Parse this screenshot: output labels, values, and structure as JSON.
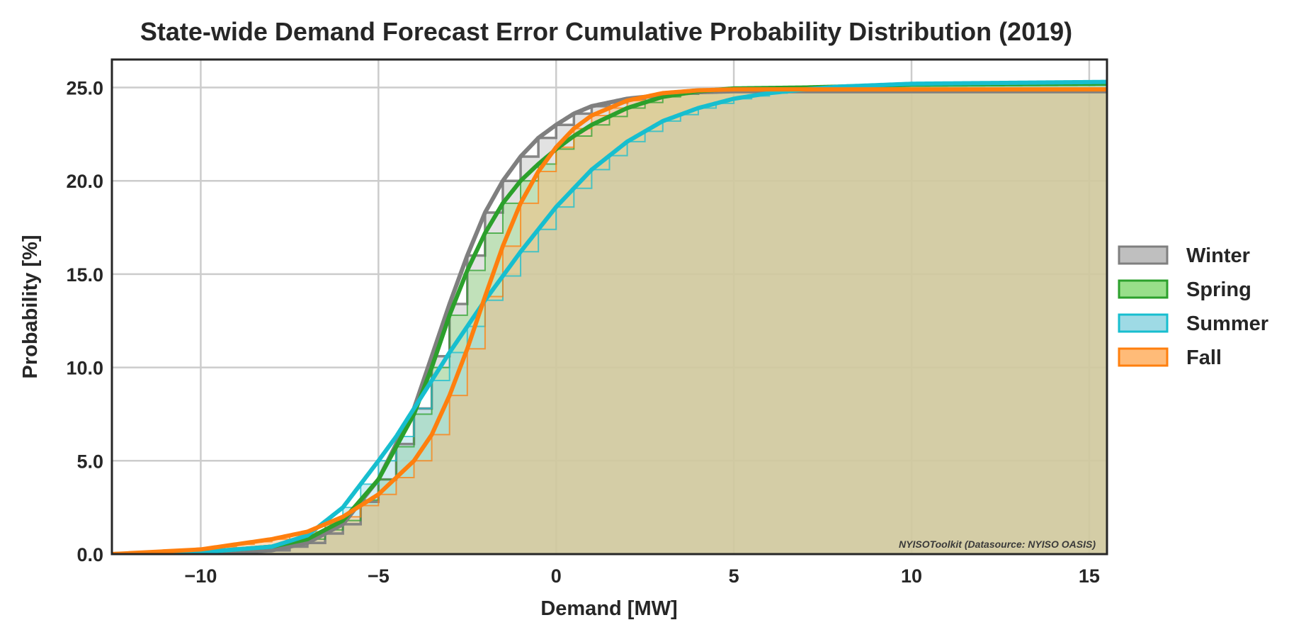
{
  "chart_data": {
    "type": "area",
    "title": "State-wide Demand Forecast Error Cumulative Probability Distribution (2019)",
    "xlabel": "Demand [MW]",
    "ylabel": "Probability [%]",
    "xlim": [
      -12.5,
      15.5
    ],
    "ylim": [
      0,
      26.5
    ],
    "xticks": [
      -10,
      -5,
      0,
      5,
      10,
      15
    ],
    "xtick_labels": [
      "−10",
      "−5",
      "0",
      "5",
      "10",
      "15"
    ],
    "yticks": [
      0,
      5,
      10,
      15,
      20,
      25
    ],
    "ytick_labels": [
      "0.0",
      "5.0",
      "10.0",
      "15.0",
      "20.0",
      "25.0"
    ],
    "grid": true,
    "legend_position": "right",
    "watermark": "NYISOToolkit (Datasource: NYISO OASIS)",
    "series": [
      {
        "name": "Winter",
        "color": "#7f7f7f",
        "fill": "#bfbfbf",
        "x": [
          -12.5,
          -10,
          -8,
          -7,
          -6,
          -5,
          -4,
          -3.5,
          -3,
          -2.5,
          -2,
          -1.5,
          -1,
          -0.5,
          0,
          0.5,
          1,
          2,
          3,
          4,
          5,
          7,
          10,
          15.5
        ],
        "y": [
          0,
          0.05,
          0.2,
          0.6,
          1.6,
          4.0,
          7.8,
          10.6,
          13.4,
          16.0,
          18.3,
          20.0,
          21.3,
          22.3,
          23.0,
          23.6,
          24.0,
          24.4,
          24.6,
          24.75,
          24.8,
          24.8,
          24.8,
          24.8
        ]
      },
      {
        "name": "Spring",
        "color": "#2ca02c",
        "fill": "#98df8a",
        "x": [
          -12.5,
          -10,
          -8,
          -7,
          -6,
          -5,
          -4,
          -3.5,
          -3,
          -2.5,
          -2,
          -1.5,
          -1,
          -0.5,
          0,
          0.5,
          1,
          2,
          3,
          4,
          5,
          7,
          8,
          10,
          15.5
        ],
        "y": [
          0,
          0.1,
          0.4,
          0.8,
          1.8,
          4.0,
          7.5,
          10.0,
          12.8,
          15.2,
          17.2,
          18.8,
          20.0,
          20.9,
          21.7,
          22.4,
          23.0,
          23.9,
          24.5,
          24.8,
          24.95,
          25.0,
          25.05,
          25.15,
          25.2
        ]
      },
      {
        "name": "Summer",
        "color": "#17becf",
        "fill": "#9edae5",
        "x": [
          -12.5,
          -10,
          -8,
          -7,
          -6,
          -5,
          -4.5,
          -4,
          -3,
          -2,
          -1,
          0,
          1,
          2,
          3,
          4,
          5,
          6,
          7,
          8,
          10,
          15.5
        ],
        "y": [
          0,
          0.1,
          0.4,
          1.0,
          2.5,
          5.0,
          6.3,
          7.8,
          10.8,
          13.6,
          16.2,
          18.6,
          20.6,
          22.1,
          23.2,
          23.9,
          24.4,
          24.7,
          24.9,
          25.05,
          25.2,
          25.3
        ]
      },
      {
        "name": "Fall",
        "color": "#ff7f0e",
        "fill": "#ffbb78",
        "x": [
          -12.5,
          -10,
          -8,
          -7,
          -6,
          -5,
          -4,
          -3.5,
          -3,
          -2.5,
          -2,
          -1.5,
          -1,
          -0.5,
          0,
          0.5,
          1,
          2,
          3,
          4,
          5,
          10,
          15.5
        ],
        "y": [
          0,
          0.25,
          0.8,
          1.2,
          2.0,
          3.2,
          5.0,
          6.4,
          8.5,
          11.0,
          13.8,
          16.5,
          18.8,
          20.5,
          21.8,
          22.8,
          23.5,
          24.3,
          24.7,
          24.85,
          24.9,
          24.9,
          24.9
        ]
      }
    ]
  }
}
